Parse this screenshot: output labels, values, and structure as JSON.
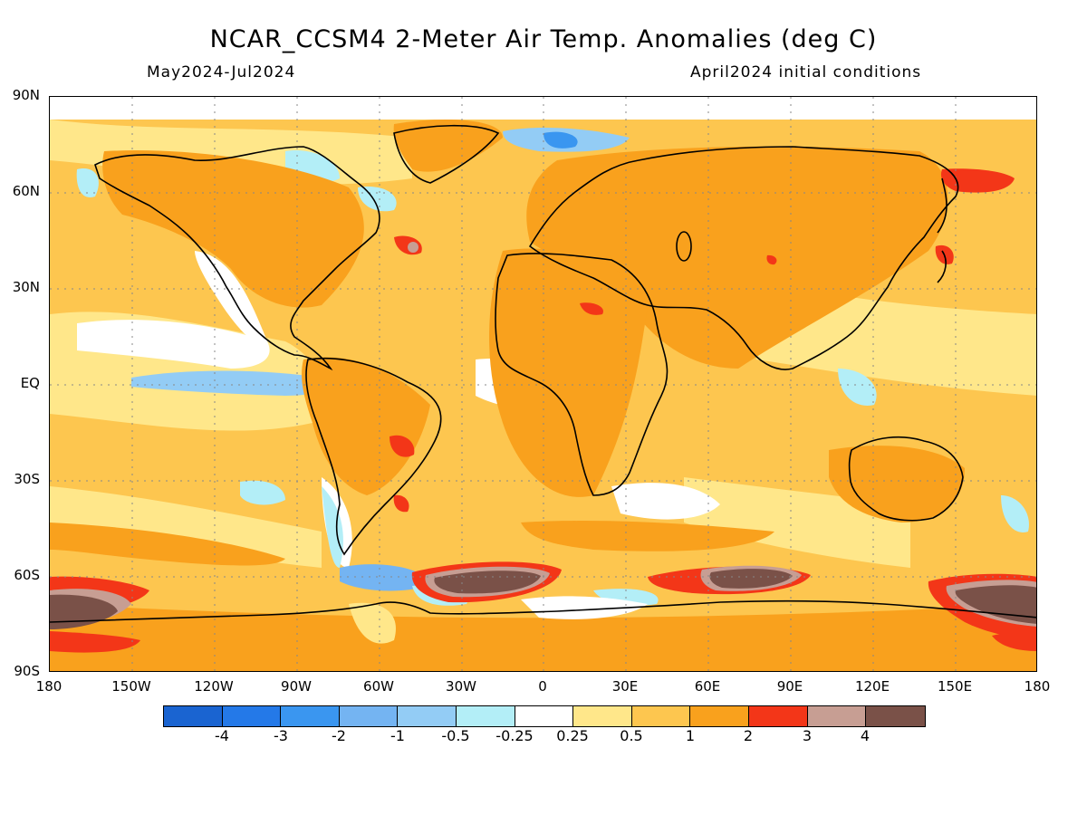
{
  "title": "NCAR_CCSM4 2-Meter Air Temp. Anomalies (deg C)",
  "subtitle_left": "May2024-Jul2024",
  "subtitle_right": "April2024 initial conditions",
  "lat_labels": [
    "90N",
    "60N",
    "30N",
    "EQ",
    "30S",
    "60S",
    "90S"
  ],
  "lon_labels": [
    "180",
    "150W",
    "120W",
    "90W",
    "60W",
    "30W",
    "0",
    "30E",
    "60E",
    "90E",
    "120E",
    "150E",
    "180"
  ],
  "colorbar": {
    "colors": [
      "#1a64d1",
      "#2479e8",
      "#3a96f0",
      "#74b4f2",
      "#93ccf5",
      "#b3eef7",
      "#ffffff",
      "#ffe78a",
      "#fdc64f",
      "#f9a11d",
      "#f33618",
      "#c79e93",
      "#7a5148"
    ],
    "labels": [
      "-4",
      "-3",
      "-2",
      "-1",
      "-0.5",
      "-0.25",
      "0.25",
      "0.5",
      "1",
      "2",
      "3",
      "4"
    ]
  },
  "field_colors": {
    "neutral": "#ffffff",
    "light_warm": "#ffe78a",
    "warm": "#fdc64f",
    "warmer": "#f9a11d",
    "hot": "#f33618",
    "very_hot": "#c79e93",
    "extreme": "#7a5148",
    "cool": "#b3eef7",
    "cooler": "#93ccf5",
    "cold": "#74b4f2",
    "colder": "#3a96f0"
  }
}
